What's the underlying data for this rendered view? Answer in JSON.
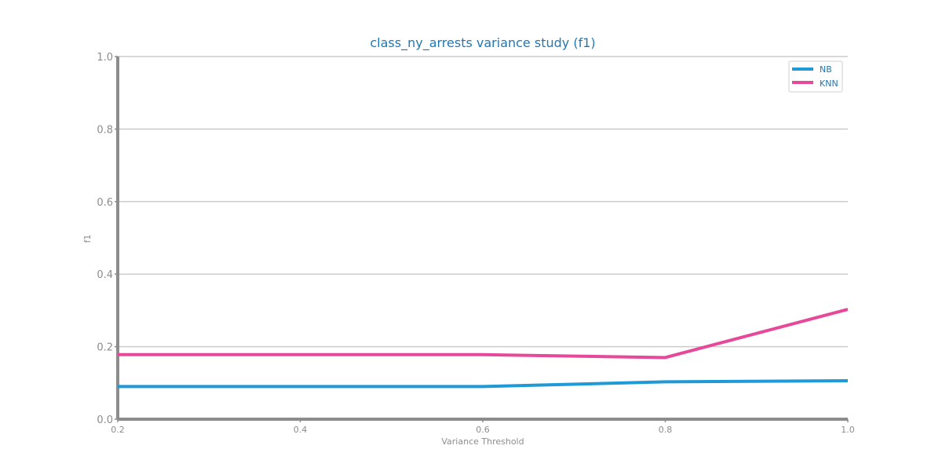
{
  "chart_data": {
    "type": "line",
    "title": "class_ny_arrests variance study (f1)",
    "xlabel": "Variance Threshold",
    "ylabel": "f1",
    "x": [
      0.2,
      0.6,
      0.8,
      1.0
    ],
    "xlim": [
      0.2,
      1.0
    ],
    "ylim": [
      0.0,
      1.0
    ],
    "x_ticks": [
      "0.2",
      "0.4",
      "0.6",
      "0.8",
      "1.0"
    ],
    "y_ticks": [
      "0.0",
      "0.2",
      "0.4",
      "0.6",
      "0.8",
      "1.0"
    ],
    "grid": "horizontal",
    "legend_position": "top-right",
    "series": [
      {
        "name": "NB",
        "color": "#1f9ad6",
        "values": [
          0.09,
          0.09,
          0.103,
          0.106
        ]
      },
      {
        "name": "KNN",
        "color": "#e6489a",
        "values": [
          0.178,
          0.178,
          0.17,
          0.303
        ]
      }
    ]
  }
}
